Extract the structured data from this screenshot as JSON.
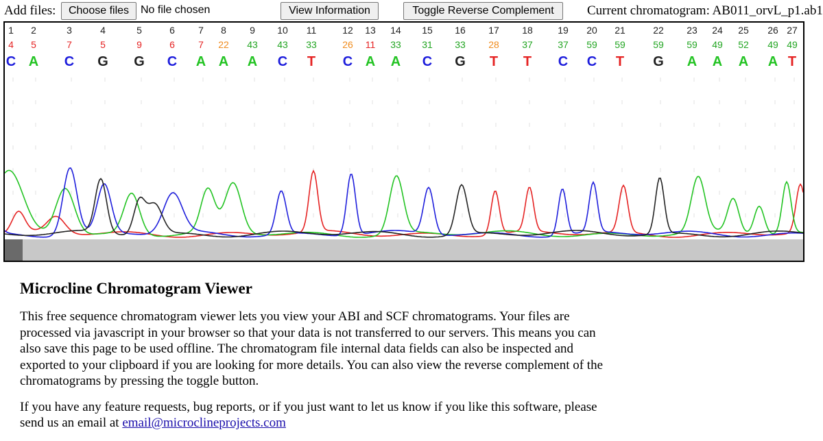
{
  "toolbar": {
    "add_files_label": "Add files:",
    "choose_files_label": "Choose files",
    "no_file_text": "No file chosen",
    "view_information_label": "View Information",
    "toggle_reverse_label": "Toggle Reverse Complement",
    "current_chromatogram_text": "Current chromatogram: AB011_orvL_p1.ab1"
  },
  "chromatogram": {
    "base_colors": {
      "A": "#22c322",
      "C": "#1e1edc",
      "G": "#222222",
      "T": "#e52222"
    },
    "quality_colors": {
      "low": "#e52222",
      "mid": "#f08c1e",
      "high": "#22a522"
    },
    "positions": [
      {
        "n": "1",
        "q": "4",
        "b": "C"
      },
      {
        "n": "2",
        "q": "5",
        "b": "A"
      },
      {
        "n": "3",
        "q": "7",
        "b": "C"
      },
      {
        "n": "4",
        "q": "5",
        "b": "G"
      },
      {
        "n": "5",
        "q": "9",
        "b": "G"
      },
      {
        "n": "6",
        "q": "6",
        "b": "C"
      },
      {
        "n": "7",
        "q": "7",
        "b": "A"
      },
      {
        "n": "8",
        "q": "22",
        "b": "A"
      },
      {
        "n": "9",
        "q": "43",
        "b": "A"
      },
      {
        "n": "10",
        "q": "43",
        "b": "C"
      },
      {
        "n": "11",
        "q": "33",
        "b": "T"
      },
      {
        "n": "12",
        "q": "26",
        "b": "C"
      },
      {
        "n": "13",
        "q": "11",
        "b": "A"
      },
      {
        "n": "14",
        "q": "33",
        "b": "A"
      },
      {
        "n": "15",
        "q": "31",
        "b": "C"
      },
      {
        "n": "16",
        "q": "33",
        "b": "G"
      },
      {
        "n": "17",
        "q": "28",
        "b": "T"
      },
      {
        "n": "18",
        "q": "37",
        "b": "T"
      },
      {
        "n": "19",
        "q": "37",
        "b": "C"
      },
      {
        "n": "20",
        "q": "59",
        "b": "C"
      },
      {
        "n": "21",
        "q": "59",
        "b": "T"
      },
      {
        "n": "22",
        "q": "59",
        "b": "G"
      },
      {
        "n": "23",
        "q": "59",
        "b": "A"
      },
      {
        "n": "24",
        "q": "49",
        "b": "A"
      },
      {
        "n": "25",
        "q": "52",
        "b": "A"
      },
      {
        "n": "26",
        "q": "49",
        "b": "A"
      },
      {
        "n": "27",
        "q": "49",
        "b": "T"
      }
    ]
  },
  "info": {
    "title": "Microcline Chromatogram Viewer",
    "paragraph1": "This free sequence chromatogram viewer lets you view your ABI and SCF chromatograms. Your files are processed via javascript in your browser so that your data is not transferred to our servers. This means you can also save this page to be used offline. The chromatogram file internal data fields can also be inspected and exported to your clipboard if you are looking for more details. You can also view the reverse complement of the chromatograms by pressing the toggle button.",
    "paragraph2_prefix": "If you have any feature requests, bug reports, or if you just want to let us know if you like this software, please send us an email at ",
    "email_link": "email@microclineprojects.com"
  }
}
